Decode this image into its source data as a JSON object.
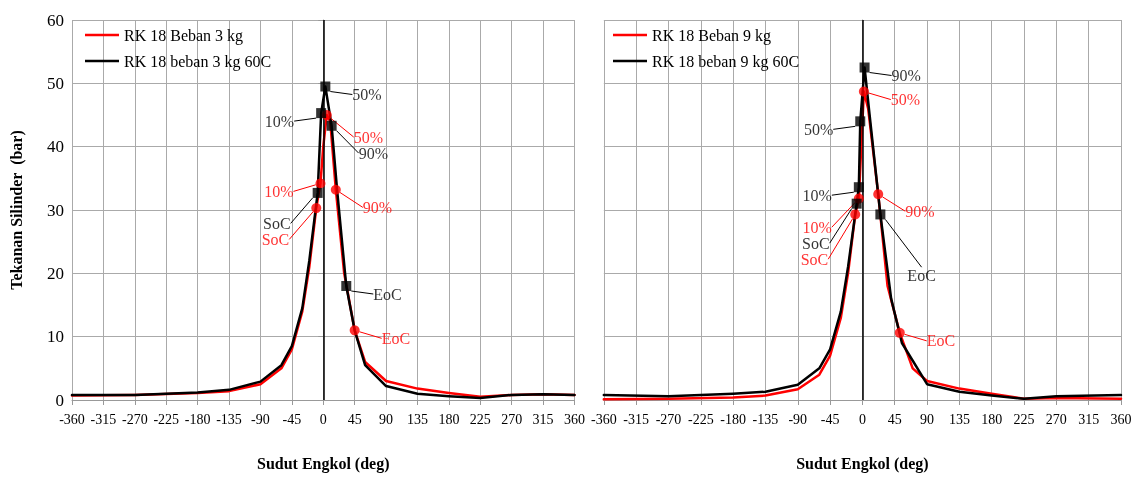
{
  "chart_data": [
    {
      "type": "line",
      "xlabel": "Sudut Engkol (deg)",
      "ylabel": "Tekanan Silinder  (bar)",
      "xlim": [
        -360,
        360
      ],
      "xticks": [
        -360,
        -315,
        -270,
        -225,
        -180,
        -135,
        -90,
        -45,
        0,
        45,
        90,
        135,
        180,
        225,
        270,
        315,
        360
      ],
      "ylim": [
        0,
        60
      ],
      "yticks": [
        0,
        10,
        20,
        30,
        40,
        50,
        60
      ],
      "grid": true,
      "legend": "top left",
      "marker": "none",
      "line_style": "solid",
      "ref_lines": [
        {
          "axis": "x",
          "value": 0,
          "color": "#000000"
        }
      ],
      "annotations": [
        {
          "text": "SoC",
          "x": -10,
          "y": 30.3
        },
        {
          "text": "10%",
          "x": -4,
          "y": 34.2
        },
        {
          "text": "50%",
          "x": 5,
          "y": 45
        },
        {
          "text": "90%",
          "x": 18,
          "y": 33.2
        },
        {
          "text": "EoC",
          "x": 45,
          "y": 11
        },
        {
          "text": "SoC",
          "x": -8,
          "y": 32.7
        },
        {
          "text": "10%",
          "x": -3,
          "y": 45.3
        },
        {
          "text": "50%",
          "x": 3,
          "y": 49.5
        },
        {
          "text": "90%",
          "x": 12,
          "y": 43.3
        },
        {
          "text": "EoC",
          "x": 33,
          "y": 18
        }
      ],
      "series": [
        {
          "name": "RK 18 Beban 3 kg",
          "color": "#ff0000",
          "x": [
            -360,
            -270,
            -180,
            -135,
            -90,
            -60,
            -45,
            -30,
            -20,
            -10,
            -4,
            0,
            5,
            10,
            18,
            30,
            45,
            60,
            90,
            135,
            180,
            225,
            270,
            315,
            360
          ],
          "values": [
            0.7,
            0.8,
            1.1,
            1.4,
            2.5,
            5,
            8,
            14,
            21,
            30.3,
            34.2,
            40,
            45,
            44,
            33.2,
            20,
            11,
            6,
            3,
            1.8,
            1.1,
            0.5,
            0.8,
            0.9,
            0.8
          ]
        },
        {
          "name": "RK 18 beban 3 kg 60C",
          "color": "#000000",
          "x": [
            -360,
            -270,
            -180,
            -135,
            -90,
            -60,
            -45,
            -30,
            -20,
            -8,
            -3,
            3,
            12,
            20,
            33,
            45,
            60,
            90,
            135,
            180,
            225,
            270,
            315,
            360
          ],
          "values": [
            0.8,
            0.8,
            1.2,
            1.6,
            2.9,
            5.5,
            8.5,
            14.5,
            22,
            32.7,
            45.3,
            49.5,
            43.3,
            33,
            18,
            11,
            5.5,
            2.2,
            1,
            0.6,
            0.3,
            0.8,
            0.9,
            0.8
          ]
        },
        {
          "type": "scatter",
          "marker": "circle",
          "color": "#ff0000",
          "x": [
            -10,
            -4,
            5,
            18,
            45
          ],
          "values": [
            30.3,
            34.2,
            45,
            33.2,
            11
          ]
        },
        {
          "type": "scatter",
          "marker": "square",
          "color": "#000000",
          "x": [
            -8,
            -3,
            3,
            12,
            33
          ],
          "values": [
            32.7,
            45.3,
            49.5,
            43.3,
            18
          ]
        }
      ]
    },
    {
      "type": "line",
      "xlabel": "Sudut Engkol (deg)",
      "xlim": [
        -360,
        360
      ],
      "xticks": [
        -360,
        -315,
        -270,
        -225,
        -180,
        -135,
        -90,
        -45,
        0,
        45,
        90,
        135,
        180,
        225,
        270,
        315,
        360
      ],
      "ylim": [
        0,
        60
      ],
      "yticks": [
        0,
        10,
        20,
        30,
        40,
        50,
        60
      ],
      "tick_labels": "x",
      "grid": true,
      "legend": "top left",
      "marker": "none",
      "line_style": "solid",
      "ref_lines": [
        {
          "axis": "x",
          "value": 0,
          "color": "#000000"
        }
      ],
      "annotations": [
        {
          "text": "SoC",
          "x": -10,
          "y": 29.3
        },
        {
          "text": "10%",
          "x": -5,
          "y": 31.8
        },
        {
          "text": "50%",
          "x": 2,
          "y": 48.7
        },
        {
          "text": "90%",
          "x": 22,
          "y": 32.5
        },
        {
          "text": "EoC",
          "x": 52,
          "y": 10.6
        },
        {
          "text": "SoC",
          "x": -8,
          "y": 31
        },
        {
          "text": "10%",
          "x": -5,
          "y": 33.6
        },
        {
          "text": "50%",
          "x": -3,
          "y": 44
        },
        {
          "text": "90%",
          "x": 3,
          "y": 52.5
        },
        {
          "text": "EoC",
          "x": 25,
          "y": 29.3
        }
      ],
      "series": [
        {
          "name": "RK 18 Beban 9 kg",
          "color": "#ff0000",
          "x": [
            -360,
            -270,
            -180,
            -135,
            -90,
            -60,
            -45,
            -30,
            -20,
            -10,
            -5,
            2,
            8,
            22,
            35,
            52,
            70,
            90,
            135,
            180,
            225,
            270,
            360
          ],
          "values": [
            0.1,
            0.2,
            0.4,
            0.7,
            1.7,
            4,
            7,
            13,
            20,
            29.3,
            31.8,
            48.7,
            46,
            32.5,
            18,
            10.6,
            5,
            3,
            1.8,
            1,
            0.2,
            0.3,
            0.2
          ]
        },
        {
          "name": "RK 18 beban 9 kg 60C",
          "color": "#000000",
          "x": [
            -360,
            -270,
            -180,
            -135,
            -90,
            -60,
            -45,
            -30,
            -20,
            -8,
            -5,
            -3,
            3,
            10,
            25,
            40,
            55,
            90,
            135,
            180,
            225,
            270,
            360
          ],
          "values": [
            0.8,
            0.6,
            1,
            1.3,
            2.4,
            5,
            8,
            14,
            21,
            31,
            33.6,
            44,
            52.5,
            45,
            29.3,
            16,
            9,
            2.5,
            1.3,
            0.7,
            0.2,
            0.6,
            0.8
          ]
        },
        {
          "type": "scatter",
          "marker": "circle",
          "color": "#ff0000",
          "x": [
            -10,
            -5,
            2,
            22,
            52
          ],
          "values": [
            29.3,
            31.8,
            48.7,
            32.5,
            10.6
          ]
        },
        {
          "type": "scatter",
          "marker": "square",
          "color": "#000000",
          "x": [
            -8,
            -5,
            -3,
            3,
            25
          ],
          "values": [
            31,
            33.6,
            44,
            52.5,
            29.3
          ]
        }
      ]
    }
  ]
}
